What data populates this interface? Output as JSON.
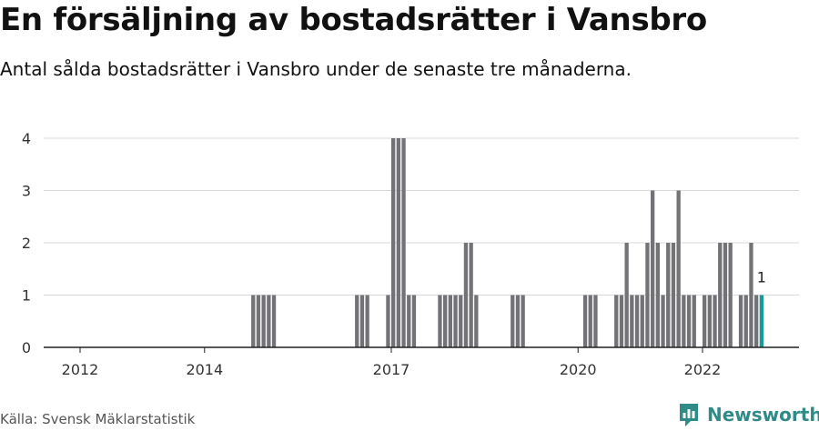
{
  "title": "En försäljning av bostadsrätter i Vansbro",
  "subtitle": "Antal sålda bostadsrätter i Vansbro under de senaste tre månaderna.",
  "source": "Källa: Svensk Mäklarstatistik",
  "brand": {
    "name": "Newsworthy",
    "icon": "newsworthy-logo-icon",
    "color": "#2e8b87"
  },
  "chart_data": {
    "type": "bar",
    "ylim": [
      0,
      4
    ],
    "yticks": [
      "0",
      "1",
      "2",
      "3",
      "4"
    ],
    "xticks": [
      "2012",
      "2014",
      "2017",
      "2020",
      "2022"
    ],
    "bar_color": "#737276",
    "highlight_color": "#1a9a94",
    "highlight_label": "1",
    "grid": true,
    "categories": [
      "2014-10",
      "2014-11",
      "2014-12",
      "2015-01",
      "2015-02",
      "2016-06",
      "2016-07",
      "2016-08",
      "2016-12",
      "2017-01",
      "2017-02",
      "2017-03",
      "2017-04",
      "2017-05",
      "2017-10",
      "2017-11",
      "2017-12",
      "2018-01",
      "2018-02",
      "2018-03",
      "2018-04",
      "2018-05",
      "2018-12",
      "2019-01",
      "2019-02",
      "2020-02",
      "2020-03",
      "2020-04",
      "2020-08",
      "2020-09",
      "2020-10",
      "2020-11",
      "2020-12",
      "2021-01",
      "2021-02",
      "2021-03",
      "2021-04",
      "2021-05",
      "2021-06",
      "2021-07",
      "2021-08",
      "2021-09",
      "2021-10",
      "2021-11",
      "2022-01",
      "2022-02",
      "2022-03",
      "2022-04",
      "2022-05",
      "2022-06",
      "2022-08",
      "2022-09",
      "2022-10",
      "2022-11",
      "2022-12"
    ],
    "values": [
      1,
      1,
      1,
      1,
      1,
      1,
      1,
      1,
      1,
      4,
      4,
      4,
      1,
      1,
      1,
      1,
      1,
      1,
      1,
      2,
      2,
      1,
      1,
      1,
      1,
      1,
      1,
      1,
      1,
      1,
      2,
      1,
      1,
      1,
      2,
      3,
      2,
      1,
      2,
      2,
      3,
      1,
      1,
      1,
      1,
      1,
      1,
      2,
      2,
      2,
      1,
      1,
      2,
      1,
      1
    ]
  }
}
